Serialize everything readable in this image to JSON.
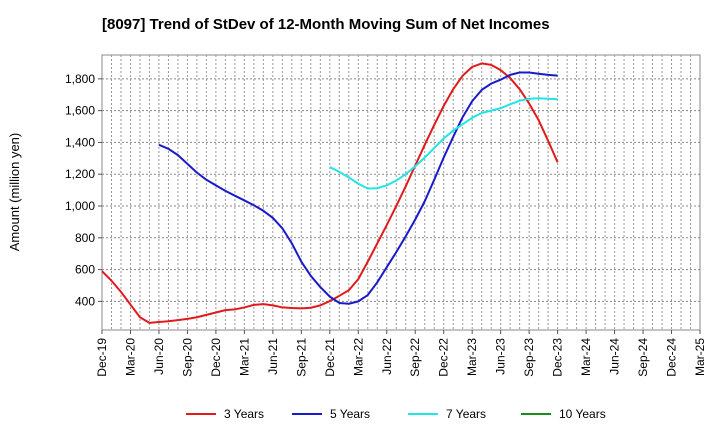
{
  "chart_data": {
    "type": "line",
    "title": "[8097]  Trend of StDev of 12-Month Moving Sum of Net Incomes",
    "ylabel": "Amount (million yen)",
    "xlabel": "",
    "ylim": [
      220,
      1950
    ],
    "yticks": [
      400,
      600,
      800,
      "1,000",
      "1,200",
      "1,400",
      "1,600",
      "1,800"
    ],
    "ytick_values": [
      400,
      600,
      800,
      1000,
      1200,
      1400,
      1600,
      1800
    ],
    "xticks": [
      "Dec-19",
      "Mar-20",
      "Jun-20",
      "Sep-20",
      "Dec-20",
      "Mar-21",
      "Jun-21",
      "Sep-21",
      "Dec-21",
      "Mar-22",
      "Jun-22",
      "Sep-22",
      "Dec-22",
      "Mar-23",
      "Jun-23",
      "Sep-23",
      "Dec-23",
      "Mar-24",
      "Jun-24",
      "Sep-24",
      "Dec-24",
      "Mar-25"
    ],
    "grid": true,
    "legend_position": "bottom",
    "series": [
      {
        "name": "3 Years",
        "color": "#e31a1c",
        "values": [
          [
            0,
            590
          ],
          [
            1,
            530
          ],
          [
            2,
            460
          ],
          [
            3,
            380
          ],
          [
            4,
            300
          ],
          [
            5,
            265
          ],
          [
            6,
            270
          ],
          [
            7,
            275
          ],
          [
            8,
            282
          ],
          [
            9,
            290
          ],
          [
            10,
            300
          ],
          [
            11,
            315
          ],
          [
            12,
            330
          ],
          [
            13,
            345
          ],
          [
            14,
            350
          ],
          [
            15,
            362
          ],
          [
            16,
            378
          ],
          [
            17,
            383
          ],
          [
            18,
            375
          ],
          [
            19,
            362
          ],
          [
            20,
            358
          ],
          [
            21,
            356
          ],
          [
            22,
            360
          ],
          [
            23,
            375
          ],
          [
            24,
            402
          ],
          [
            25,
            435
          ],
          [
            26,
            470
          ],
          [
            27,
            540
          ],
          [
            28,
            650
          ],
          [
            29,
            765
          ],
          [
            30,
            880
          ],
          [
            31,
            1000
          ],
          [
            32,
            1125
          ],
          [
            33,
            1255
          ],
          [
            34,
            1385
          ],
          [
            35,
            1510
          ],
          [
            36,
            1630
          ],
          [
            37,
            1735
          ],
          [
            38,
            1820
          ],
          [
            39,
            1875
          ],
          [
            40,
            1897
          ],
          [
            41,
            1888
          ],
          [
            42,
            1855
          ],
          [
            43,
            1805
          ],
          [
            44,
            1735
          ],
          [
            45,
            1645
          ],
          [
            46,
            1540
          ],
          [
            47,
            1410
          ],
          [
            48,
            1275
          ]
        ]
      },
      {
        "name": "5 Years",
        "color": "#1a1acd",
        "values": [
          [
            6,
            1385
          ],
          [
            7,
            1360
          ],
          [
            8,
            1320
          ],
          [
            9,
            1265
          ],
          [
            10,
            1210
          ],
          [
            11,
            1165
          ],
          [
            12,
            1130
          ],
          [
            13,
            1095
          ],
          [
            14,
            1065
          ],
          [
            15,
            1035
          ],
          [
            16,
            1005
          ],
          [
            17,
            970
          ],
          [
            18,
            925
          ],
          [
            19,
            860
          ],
          [
            20,
            765
          ],
          [
            21,
            650
          ],
          [
            22,
            560
          ],
          [
            23,
            490
          ],
          [
            24,
            430
          ],
          [
            25,
            390
          ],
          [
            26,
            385
          ],
          [
            27,
            400
          ],
          [
            28,
            440
          ],
          [
            29,
            520
          ],
          [
            30,
            615
          ],
          [
            31,
            710
          ],
          [
            32,
            810
          ],
          [
            33,
            915
          ],
          [
            34,
            1030
          ],
          [
            35,
            1165
          ],
          [
            36,
            1305
          ],
          [
            37,
            1435
          ],
          [
            38,
            1560
          ],
          [
            39,
            1660
          ],
          [
            40,
            1730
          ],
          [
            41,
            1770
          ],
          [
            42,
            1795
          ],
          [
            43,
            1825
          ],
          [
            44,
            1840
          ],
          [
            45,
            1840
          ],
          [
            46,
            1832
          ],
          [
            47,
            1825
          ],
          [
            48,
            1820
          ]
        ]
      },
      {
        "name": "7 Years",
        "color": "#22e5e5",
        "values": [
          [
            24,
            1245
          ],
          [
            25,
            1215
          ],
          [
            26,
            1180
          ],
          [
            27,
            1140
          ],
          [
            28,
            1110
          ],
          [
            29,
            1112
          ],
          [
            30,
            1130
          ],
          [
            31,
            1160
          ],
          [
            32,
            1200
          ],
          [
            33,
            1250
          ],
          [
            34,
            1305
          ],
          [
            35,
            1365
          ],
          [
            36,
            1425
          ],
          [
            37,
            1475
          ],
          [
            38,
            1515
          ],
          [
            39,
            1555
          ],
          [
            40,
            1585
          ],
          [
            41,
            1600
          ],
          [
            42,
            1615
          ],
          [
            43,
            1640
          ],
          [
            44,
            1662
          ],
          [
            45,
            1675
          ],
          [
            46,
            1678
          ],
          [
            47,
            1675
          ],
          [
            48,
            1672
          ]
        ]
      },
      {
        "name": "10 Years",
        "color": "#1a8f1a",
        "values": []
      }
    ]
  }
}
